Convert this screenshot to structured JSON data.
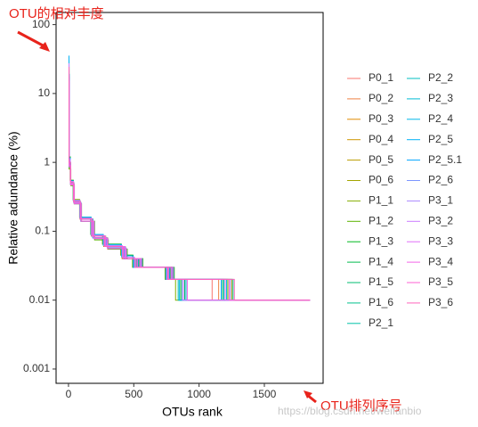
{
  "chart_data": {
    "type": "step",
    "ylabel": "Relative adundance (%)",
    "xlabel": "OTUs rank",
    "annotations": [
      "OTU的相对丰度",
      "OTU排列序号"
    ],
    "watermark": "https://blog.csdn.net/weifanbio",
    "log_y": true,
    "xlim": [
      -95,
      1950
    ],
    "xticks": [
      0,
      500,
      1000,
      1500
    ],
    "ylim": [
      0.00062,
      150
    ],
    "yticks": [
      0.001,
      0.01,
      0.1,
      1,
      10,
      100
    ],
    "series": [
      {
        "name": "P0_1",
        "color": "#F8766D",
        "x": [
          1,
          4,
          15,
          40,
          90,
          180,
          280,
          420,
          520,
          760,
          1100,
          1850
        ],
        "values": [
          20,
          1,
          0.5,
          0.27,
          0.15,
          0.085,
          0.06,
          0.04,
          0.03,
          0.02,
          0.01,
          0.01
        ]
      },
      {
        "name": "P0_2",
        "color": "#EE8043",
        "x": [
          1,
          5,
          16,
          42,
          95,
          190,
          290,
          430,
          540,
          780,
          1150,
          1850
        ],
        "values": [
          18,
          0.9,
          0.48,
          0.26,
          0.14,
          0.08,
          0.06,
          0.04,
          0.03,
          0.02,
          0.01,
          0.01
        ]
      },
      {
        "name": "P0_3",
        "color": "#E08B00",
        "x": [
          1,
          4,
          14,
          38,
          88,
          175,
          270,
          410,
          500,
          750,
          900,
          1200
        ],
        "values": [
          25,
          1.1,
          0.52,
          0.28,
          0.15,
          0.085,
          0.06,
          0.04,
          0.03,
          0.02,
          0.01,
          0.01
        ]
      },
      {
        "name": "P0_4",
        "color": "#CF9400",
        "x": [
          1,
          5,
          17,
          44,
          98,
          195,
          300,
          440,
          560,
          800,
          1200,
          1850
        ],
        "values": [
          15,
          0.85,
          0.47,
          0.25,
          0.14,
          0.08,
          0.055,
          0.04,
          0.03,
          0.02,
          0.01,
          0.01
        ]
      },
      {
        "name": "P0_5",
        "color": "#BB9D00",
        "x": [
          1,
          4,
          15,
          40,
          92,
          185,
          285,
          425,
          530,
          770,
          880,
          1150
        ],
        "values": [
          22,
          1,
          0.5,
          0.27,
          0.15,
          0.085,
          0.06,
          0.04,
          0.03,
          0.02,
          0.01,
          0.01
        ]
      },
      {
        "name": "P0_6",
        "color": "#A3A500",
        "x": [
          1,
          5,
          16,
          43,
          96,
          192,
          295,
          435,
          550,
          790,
          1250,
          1850
        ],
        "values": [
          17,
          0.9,
          0.49,
          0.26,
          0.14,
          0.08,
          0.06,
          0.04,
          0.03,
          0.02,
          0.01,
          0.01
        ]
      },
      {
        "name": "P1_1",
        "color": "#85AD00",
        "x": [
          1,
          4,
          13,
          36,
          85,
          170,
          260,
          400,
          490,
          740,
          820,
          1050
        ],
        "values": [
          28,
          1.1,
          0.55,
          0.29,
          0.16,
          0.09,
          0.065,
          0.045,
          0.03,
          0.02,
          0.01,
          0.01
        ]
      },
      {
        "name": "P1_2",
        "color": "#5BB300",
        "x": [
          1,
          5,
          18,
          45,
          100,
          200,
          305,
          450,
          570,
          810,
          1220,
          1850
        ],
        "values": [
          14,
          0.8,
          0.46,
          0.25,
          0.14,
          0.075,
          0.055,
          0.04,
          0.03,
          0.02,
          0.01,
          0.01
        ]
      },
      {
        "name": "P1_3",
        "color": "#00B81F",
        "x": [
          1,
          4,
          14,
          37,
          86,
          172,
          265,
          405,
          495,
          745,
          860,
          1100
        ],
        "values": [
          30,
          1.2,
          0.55,
          0.28,
          0.16,
          0.09,
          0.065,
          0.045,
          0.03,
          0.02,
          0.01,
          0.01
        ]
      },
      {
        "name": "P1_4",
        "color": "#00BB4E",
        "x": [
          1,
          5,
          16,
          41,
          93,
          187,
          288,
          428,
          535,
          775,
          1180,
          1850
        ],
        "values": [
          19,
          0.95,
          0.5,
          0.26,
          0.15,
          0.08,
          0.06,
          0.04,
          0.03,
          0.02,
          0.01,
          0.01
        ]
      },
      {
        "name": "P1_5",
        "color": "#00BE70",
        "x": [
          1,
          4,
          15,
          39,
          89,
          178,
          275,
          415,
          510,
          755,
          890,
          1230
        ],
        "values": [
          24,
          1,
          0.52,
          0.27,
          0.15,
          0.085,
          0.06,
          0.04,
          0.03,
          0.02,
          0.01,
          0.01
        ]
      },
      {
        "name": "P1_6",
        "color": "#00C08D",
        "x": [
          1,
          5,
          17,
          43,
          97,
          193,
          298,
          438,
          555,
          795,
          1260,
          1850
        ],
        "values": [
          16,
          0.88,
          0.48,
          0.26,
          0.14,
          0.08,
          0.058,
          0.04,
          0.03,
          0.02,
          0.01,
          0.01
        ]
      },
      {
        "name": "P2_1",
        "color": "#00C1A7",
        "x": [
          1,
          4,
          14,
          38,
          87,
          174,
          268,
          408,
          498,
          748,
          840,
          1080
        ],
        "values": [
          26,
          1.1,
          0.53,
          0.28,
          0.155,
          0.087,
          0.062,
          0.042,
          0.03,
          0.02,
          0.01,
          0.01
        ]
      },
      {
        "name": "P2_2",
        "color": "#00BFC0",
        "x": [
          1,
          5,
          16,
          42,
          94,
          189,
          292,
          432,
          545,
          785,
          1190,
          1850
        ],
        "values": [
          18,
          0.92,
          0.49,
          0.26,
          0.14,
          0.08,
          0.06,
          0.04,
          0.03,
          0.02,
          0.01,
          0.01
        ]
      },
      {
        "name": "P2_3",
        "color": "#00BCD6",
        "x": [
          1,
          4,
          15,
          40,
          91,
          182,
          282,
          422,
          525,
          765,
          900,
          1250
        ],
        "values": [
          21,
          1,
          0.5,
          0.27,
          0.15,
          0.085,
          0.06,
          0.04,
          0.03,
          0.02,
          0.01,
          0.01
        ]
      },
      {
        "name": "P2_4",
        "color": "#00B7E9",
        "x": [
          1,
          5,
          17,
          44,
          99,
          197,
          302,
          445,
          565,
          805,
          1210,
          1850
        ],
        "values": [
          15,
          0.86,
          0.47,
          0.25,
          0.14,
          0.078,
          0.056,
          0.04,
          0.03,
          0.02,
          0.01,
          0.01
        ]
      },
      {
        "name": "P2_5",
        "color": "#00B0F6",
        "x": [
          1,
          4,
          14,
          37,
          86,
          173,
          266,
          406,
          496,
          746,
          850,
          1270
        ],
        "values": [
          35,
          1.15,
          0.54,
          0.28,
          0.16,
          0.09,
          0.064,
          0.044,
          0.03,
          0.02,
          0.01,
          0.01
        ]
      },
      {
        "name": "P2_5.1",
        "color": "#00A5FF",
        "x": [
          1,
          5,
          16,
          41,
          93,
          186,
          287,
          427,
          532,
          772,
          1170,
          1850
        ],
        "values": [
          19,
          0.94,
          0.5,
          0.26,
          0.15,
          0.08,
          0.06,
          0.04,
          0.03,
          0.02,
          0.01,
          0.01
        ]
      },
      {
        "name": "P2_6",
        "color": "#7D96FF",
        "x": [
          1,
          4,
          15,
          39,
          90,
          180,
          278,
          418,
          515,
          758,
          870,
          1140
        ],
        "values": [
          23,
          1,
          0.51,
          0.27,
          0.15,
          0.085,
          0.06,
          0.04,
          0.03,
          0.02,
          0.01,
          0.01
        ]
      },
      {
        "name": "P3_1",
        "color": "#AC88FF",
        "x": [
          1,
          5,
          17,
          43,
          96,
          194,
          296,
          437,
          552,
          792,
          1240,
          1850
        ],
        "values": [
          16,
          0.89,
          0.48,
          0.26,
          0.14,
          0.08,
          0.058,
          0.04,
          0.03,
          0.02,
          0.01,
          0.01
        ]
      },
      {
        "name": "P3_2",
        "color": "#CB7BFF",
        "x": [
          1,
          4,
          14,
          38,
          88,
          176,
          272,
          412,
          505,
          752,
          880,
          1190
        ],
        "values": [
          27,
          1.1,
          0.53,
          0.28,
          0.155,
          0.087,
          0.062,
          0.042,
          0.03,
          0.02,
          0.01,
          0.01
        ]
      },
      {
        "name": "P3_3",
        "color": "#E26EF7",
        "x": [
          1,
          5,
          16,
          42,
          95,
          191,
          293,
          433,
          548,
          788,
          1200,
          1850
        ],
        "values": [
          18,
          0.91,
          0.49,
          0.26,
          0.14,
          0.08,
          0.06,
          0.04,
          0.03,
          0.02,
          0.01,
          0.01
        ]
      },
      {
        "name": "P3_4",
        "color": "#F265E7",
        "x": [
          1,
          4,
          15,
          40,
          91,
          183,
          283,
          423,
          528,
          768,
          910,
          1260
        ],
        "values": [
          22,
          1,
          0.5,
          0.27,
          0.15,
          0.085,
          0.06,
          0.04,
          0.03,
          0.02,
          0.01,
          0.01
        ]
      },
      {
        "name": "P3_5",
        "color": "#FC61D3",
        "x": [
          1,
          5,
          17,
          44,
          98,
          196,
          301,
          443,
          560,
          800,
          1230,
          1850
        ],
        "values": [
          15,
          0.87,
          0.47,
          0.25,
          0.14,
          0.078,
          0.056,
          0.04,
          0.03,
          0.02,
          0.01,
          0.01
        ]
      },
      {
        "name": "P3_6",
        "color": "#FF63BC",
        "x": [
          1,
          4,
          15,
          39,
          89,
          179,
          276,
          416,
          512,
          760,
          1270,
          1850
        ],
        "values": [
          24,
          1,
          0.51,
          0.27,
          0.15,
          0.085,
          0.06,
          0.04,
          0.03,
          0.02,
          0.01,
          0.01
        ]
      }
    ]
  }
}
